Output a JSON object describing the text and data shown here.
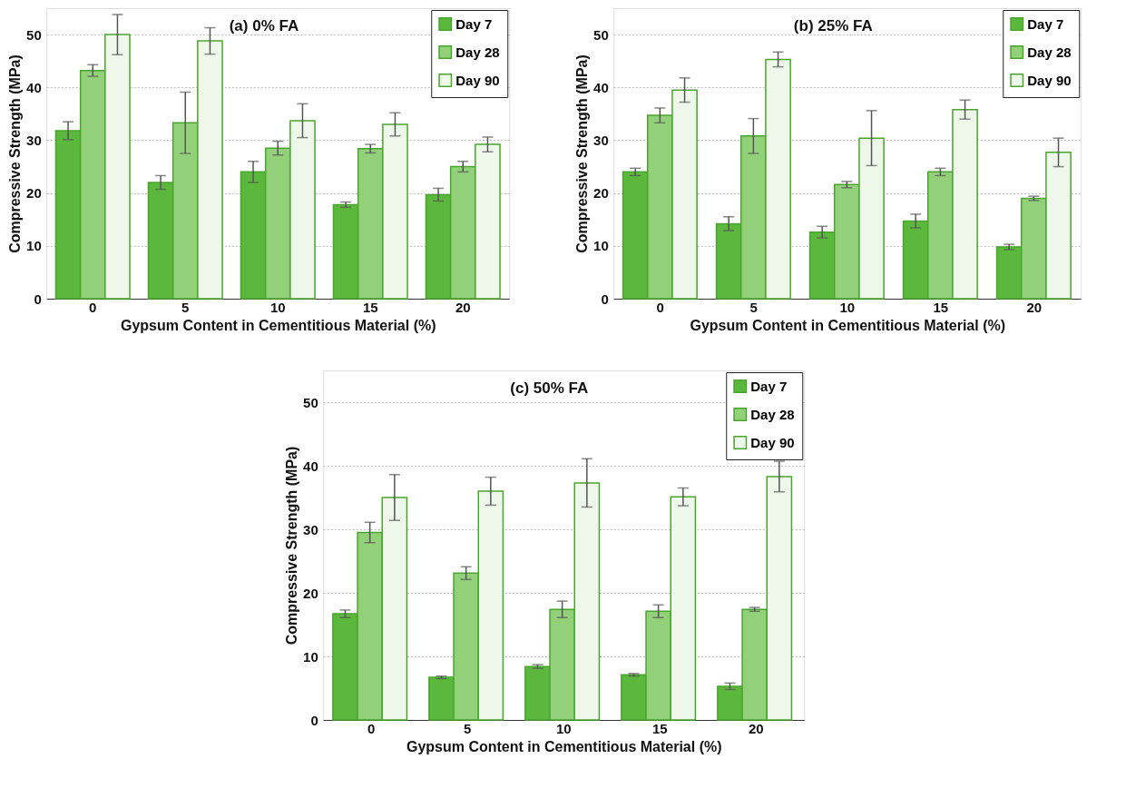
{
  "chart_data": [
    {
      "type": "bar",
      "title": "(a) 0% FA",
      "xlabel": "Gypsum Content in Cementitious Material (%)",
      "ylabel": "Compressive Strength (MPa)",
      "categories": [
        "0",
        "5",
        "10",
        "15",
        "20"
      ],
      "ylim": [
        0,
        55
      ],
      "yticks": [
        0,
        10,
        20,
        30,
        40,
        50
      ],
      "grid": "y",
      "legend": "top right",
      "series": [
        {
          "name": "Day 7",
          "color": "#5cb83c",
          "values": [
            31.8,
            22,
            24,
            17.8,
            19.7
          ],
          "errors": [
            1.7,
            1.3,
            2,
            0.5,
            1.2
          ]
        },
        {
          "name": "Day 28",
          "color": "#93d07a",
          "values": [
            43.2,
            33.3,
            28.5,
            28.4,
            25
          ],
          "errors": [
            1.1,
            5.8,
            1.3,
            0.8,
            1
          ]
        },
        {
          "name": "Day 90",
          "color": "#eef8ea",
          "values": [
            50,
            48.8,
            33.7,
            33,
            29.2
          ],
          "errors": [
            3.8,
            2.5,
            3.2,
            2.2,
            1.4
          ]
        }
      ]
    },
    {
      "type": "bar",
      "title": "(b) 25% FA",
      "xlabel": "Gypsum Content in Cementitious Material (%)",
      "ylabel": "Compressive Strength (MPa)",
      "categories": [
        "0",
        "5",
        "10",
        "15",
        "20"
      ],
      "ylim": [
        0,
        55
      ],
      "yticks": [
        0,
        10,
        20,
        30,
        40,
        50
      ],
      "grid": "y",
      "legend": "top right",
      "series": [
        {
          "name": "Day 7",
          "color": "#5cb83c",
          "values": [
            24,
            14.2,
            12.6,
            14.7,
            9.8
          ],
          "errors": [
            0.7,
            1.3,
            1.1,
            1.3,
            0.5
          ]
        },
        {
          "name": "Day 28",
          "color": "#93d07a",
          "values": [
            34.7,
            30.8,
            21.6,
            24,
            19
          ],
          "errors": [
            1.4,
            3.3,
            0.6,
            0.7,
            0.4
          ]
        },
        {
          "name": "Day 90",
          "color": "#eef8ea",
          "values": [
            39.5,
            45.3,
            30.4,
            35.8,
            27.7
          ],
          "errors": [
            2.3,
            1.4,
            5.2,
            1.8,
            2.7
          ]
        }
      ]
    },
    {
      "type": "bar",
      "title": "(c) 50% FA",
      "xlabel": "Gypsum Content in Cementitious Material (%)",
      "ylabel": "Compressive Strength (MPa)",
      "categories": [
        "0",
        "5",
        "10",
        "15",
        "20"
      ],
      "ylim": [
        0,
        55
      ],
      "yticks": [
        0,
        10,
        20,
        30,
        40,
        50
      ],
      "grid": "y",
      "legend": "top right",
      "series": [
        {
          "name": "Day 7",
          "color": "#5cb83c",
          "values": [
            16.7,
            6.7,
            8.4,
            7.1,
            5.3
          ],
          "errors": [
            0.6,
            0.2,
            0.3,
            0.2,
            0.5
          ]
        },
        {
          "name": "Day 28",
          "color": "#93d07a",
          "values": [
            29.5,
            23.1,
            17.4,
            17.1,
            17.4
          ],
          "errors": [
            1.6,
            1,
            1.3,
            1,
            0.3
          ]
        },
        {
          "name": "Day 90",
          "color": "#eef8ea",
          "values": [
            35,
            36,
            37.3,
            35.1,
            38.3
          ],
          "errors": [
            3.6,
            2.2,
            3.8,
            1.4,
            2.4
          ]
        }
      ]
    }
  ]
}
